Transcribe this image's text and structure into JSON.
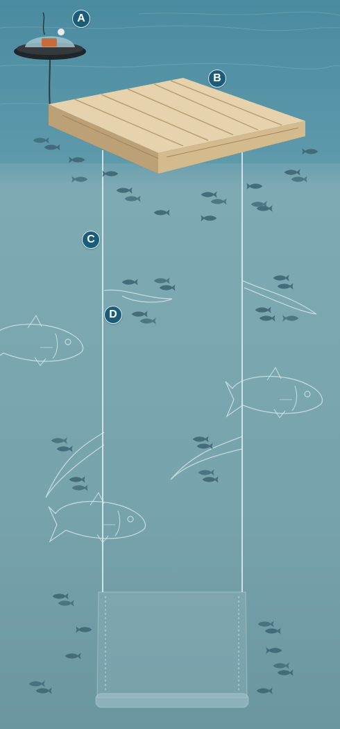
{
  "markers": {
    "a": "A",
    "b": "B",
    "c": "C",
    "d": "D"
  },
  "colors": {
    "water_top": "#4f8fa2",
    "water_mid": "#7aa8b2",
    "water_bottom": "#6e9aa5",
    "wood_light": "#e6d3ad",
    "wood_dark": "#c3a97b",
    "marker_fill": "#1b5d78",
    "fish_school": "#3e6674",
    "outline": "#d9ecef"
  },
  "icons": {
    "buoy": "buoy-icon",
    "fish": "fish-icon",
    "large_fish": "fish-outline-icon"
  }
}
